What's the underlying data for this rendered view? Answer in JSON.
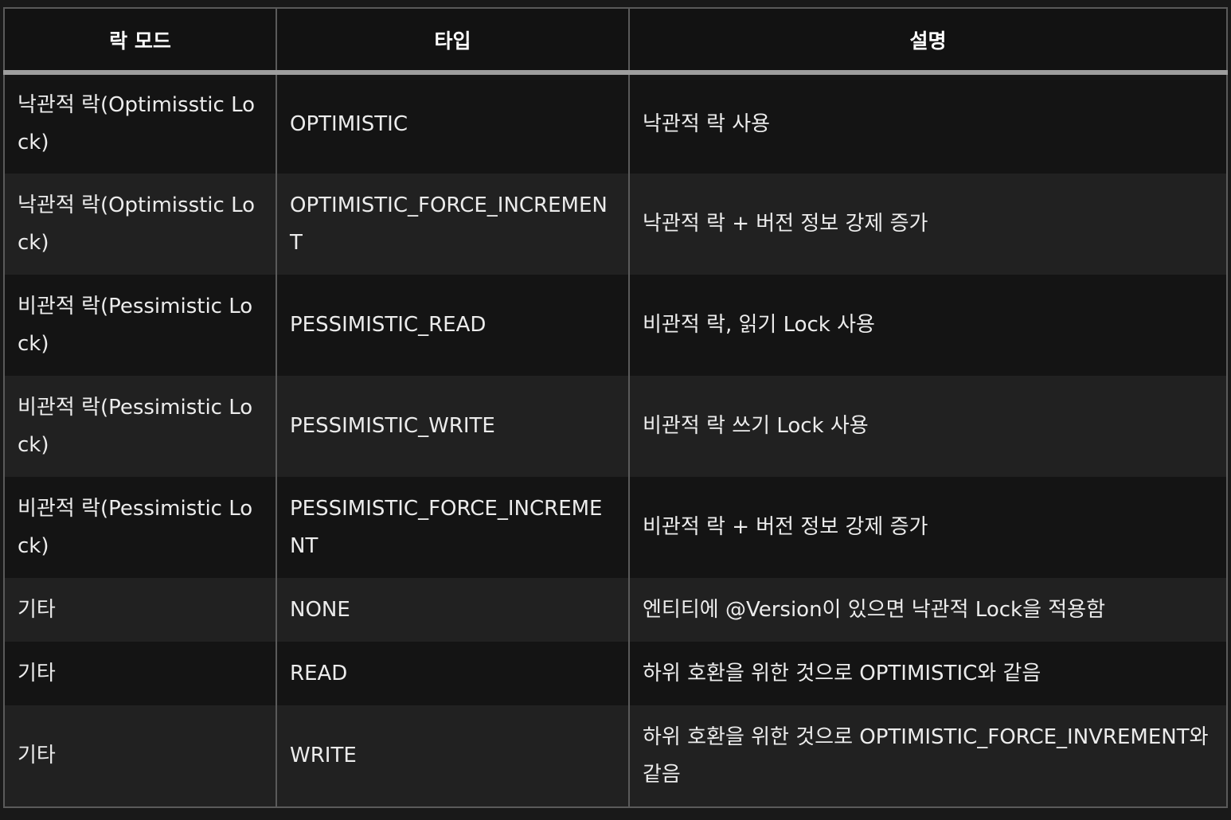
{
  "headers": [
    "락 모드",
    "타입",
    "설명"
  ],
  "rows": [
    {
      "mode": "낙관적 락(Optimisstic Lock)",
      "type": "OPTIMISTIC",
      "desc": "낙관적 락 사용"
    },
    {
      "mode": "낙관적 락(Optimisstic Lock)",
      "type": "OPTIMISTIC_FORCE_INCREMENT",
      "desc": "낙관적 락 + 버전 정보 강제 증가"
    },
    {
      "mode": "비관적 락(Pessimistic Lock)",
      "type": "PESSIMISTIC_READ",
      "desc": "비관적 락, 읽기 Lock 사용"
    },
    {
      "mode": "비관적 락(Pessimistic Lock)",
      "type": "PESSIMISTIC_WRITE",
      "desc": "비관적 락 쓰기 Lock 사용"
    },
    {
      "mode": "비관적 락(Pessimistic Lock)",
      "type": "PESSIMISTIC_FORCE_INCREMENT",
      "desc": "비관적 락 + 버전 정보 강제 증가"
    },
    {
      "mode": "기타",
      "type": "NONE",
      "desc": "엔티티에 @Version이 있으면 낙관적 Lock을 적용함"
    },
    {
      "mode": "기타",
      "type": "READ",
      "desc": "하위 호환을 위한 것으로 OPTIMISTIC와 같음"
    },
    {
      "mode": "기타",
      "type": "WRITE",
      "desc": "하위 호환을 위한 것으로 OPTIMISTIC_FORCE_INVREMENT와 같음"
    }
  ]
}
